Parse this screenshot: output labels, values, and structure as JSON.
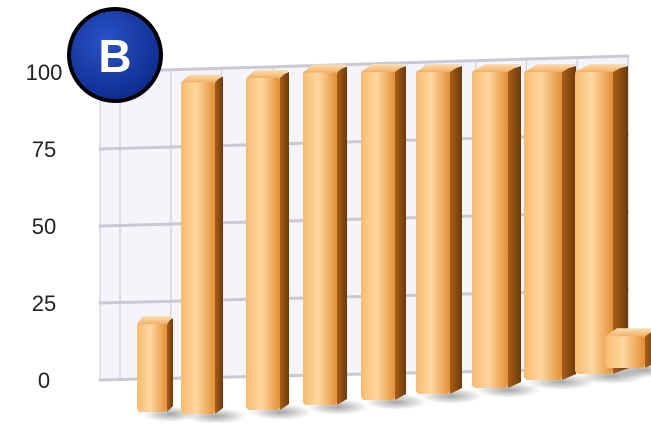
{
  "badge": {
    "letter": "B",
    "fill_color": "#0b2a8a",
    "ring_color": "#000000",
    "text_color": "#ffffff"
  },
  "chart_data": {
    "type": "bar",
    "style": "3d-perspective",
    "categories": [
      "",
      "",
      "",
      "",
      "",
      "",
      "",
      "",
      "",
      ""
    ],
    "values": [
      27,
      100,
      100,
      100,
      100,
      100,
      100,
      100,
      100,
      10
    ],
    "yticks": [
      0,
      25,
      50,
      75,
      100
    ],
    "ytick_labels": [
      "0",
      "25",
      "50",
      "75",
      "100"
    ],
    "ylim": [
      0,
      100
    ],
    "title": "",
    "xlabel": "",
    "ylabel": "",
    "grid": true,
    "legend": "none",
    "colors": {
      "bar_front": "#f0a350",
      "bar_highlight": "#ffd9a0",
      "bar_side": "#b86a1e",
      "bar_top": "#f7c98c",
      "grid_line": "#c9c9d6",
      "wall": "#f4f4fa"
    }
  }
}
